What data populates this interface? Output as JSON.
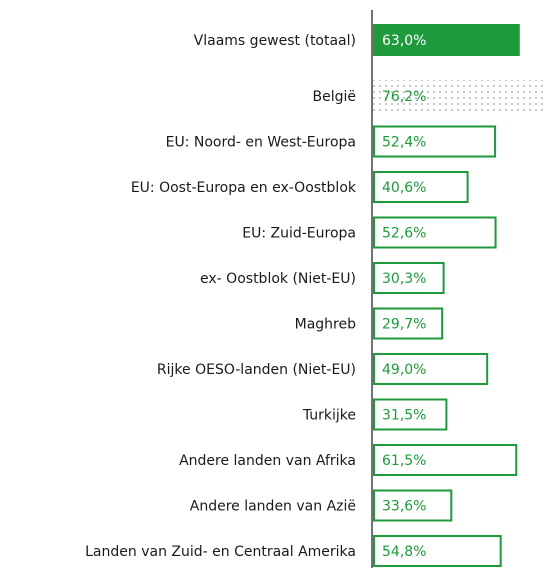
{
  "chart_data": {
    "type": "bar",
    "orientation": "horizontal",
    "categories": [
      "Vlaams gewest (totaal)",
      "België",
      "EU: Noord- en West-Europa",
      "EU: Oost-Europa en ex-Oostblok",
      "EU: Zuid-Europa",
      "ex- Oostblok (Niet-EU)",
      "Maghreb",
      "Rijke OESO-landen (Niet-EU)",
      "Turkijke",
      "Andere landen van Afrika",
      "Andere landen van Azië",
      "Landen van Zuid- en Centraal Amerika"
    ],
    "values": [
      63.0,
      76.2,
      52.4,
      40.6,
      52.6,
      30.3,
      29.7,
      49.0,
      31.5,
      61.5,
      33.6,
      54.8
    ],
    "value_labels": [
      "63,0%",
      "76,2%",
      "52,4%",
      "40,6%",
      "52,6%",
      "30,3%",
      "29,7%",
      "49,0%",
      "31,5%",
      "61,5%",
      "33,6%",
      "54,8%"
    ],
    "bar_styles": [
      "solid",
      "dotted",
      "outline",
      "outline",
      "outline",
      "outline",
      "outline",
      "outline",
      "outline",
      "outline",
      "outline",
      "outline"
    ],
    "color": "#1e9a3c"
  }
}
